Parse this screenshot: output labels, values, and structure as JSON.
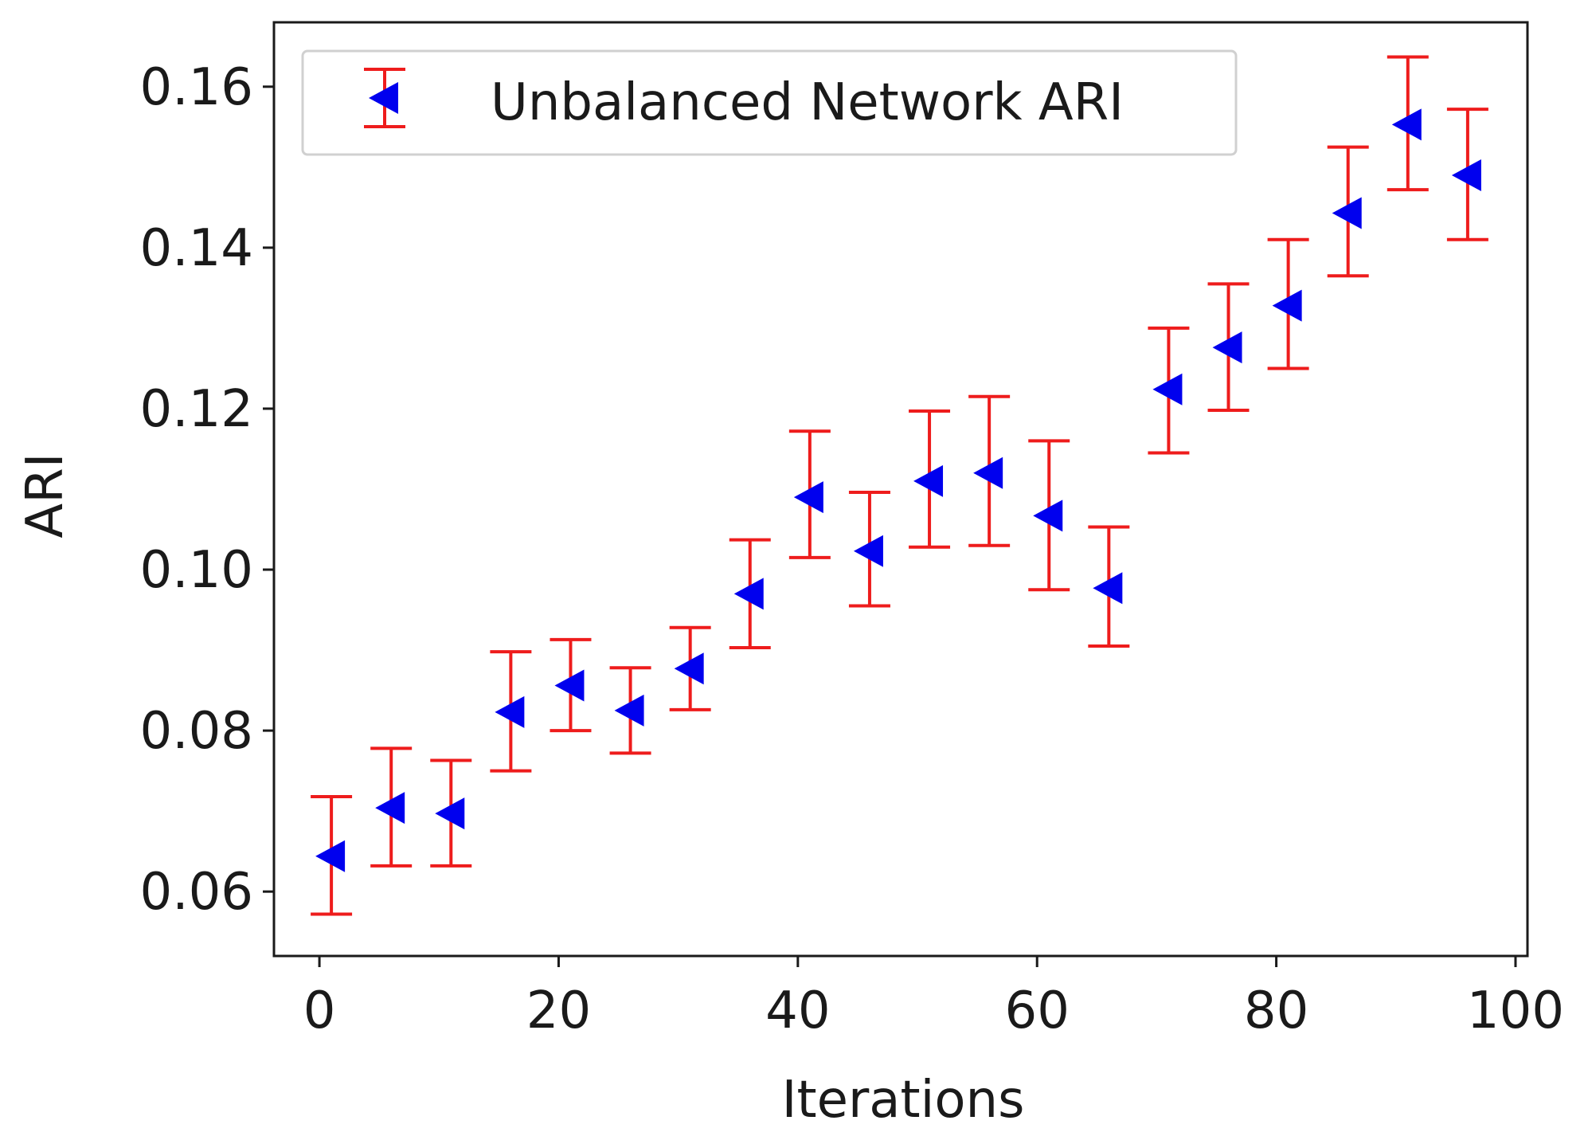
{
  "chart_data": {
    "type": "scatter",
    "xlabel": "Iterations",
    "ylabel": "ARI",
    "xlim": [
      -3.8,
      101
    ],
    "ylim": [
      0.052,
      0.168
    ],
    "xticks": [
      0,
      20,
      40,
      60,
      80,
      100
    ],
    "yticks": [
      0.06,
      0.08,
      0.1,
      0.12,
      0.14,
      0.16
    ],
    "xtick_labels": [
      "0",
      "20",
      "40",
      "60",
      "80",
      "100"
    ],
    "ytick_labels": [
      "0.06",
      "0.08",
      "0.10",
      "0.12",
      "0.14",
      "0.16"
    ],
    "grid": false,
    "legend_position": "top-left",
    "series": [
      {
        "name": "Unbalanced Network ARI",
        "marker": "left-triangle",
        "marker_color": "#0000ee",
        "errorbar_color": "#ee1c1c",
        "x": [
          1,
          6,
          11,
          16,
          21,
          26,
          31,
          36,
          41,
          46,
          51,
          56,
          61,
          66,
          71,
          76,
          81,
          86,
          91,
          96
        ],
        "y": [
          0.0644,
          0.0704,
          0.0697,
          0.0823,
          0.0856,
          0.0825,
          0.0877,
          0.097,
          0.109,
          0.1023,
          0.111,
          0.112,
          0.1067,
          0.0977,
          0.1224,
          0.1276,
          0.1328,
          0.1443,
          0.1553,
          0.149
        ],
        "y_low": [
          0.0572,
          0.0632,
          0.0632,
          0.075,
          0.08,
          0.0772,
          0.0826,
          0.0903,
          0.1015,
          0.0955,
          0.1028,
          0.103,
          0.0975,
          0.0905,
          0.1145,
          0.1198,
          0.125,
          0.1365,
          0.1472,
          0.141
        ],
        "y_high": [
          0.0718,
          0.0778,
          0.0763,
          0.0898,
          0.0913,
          0.0878,
          0.0928,
          0.1037,
          0.1172,
          0.1096,
          0.1197,
          0.1215,
          0.116,
          0.1053,
          0.13,
          0.1355,
          0.141,
          0.1525,
          0.1637,
          0.1572
        ]
      }
    ]
  }
}
